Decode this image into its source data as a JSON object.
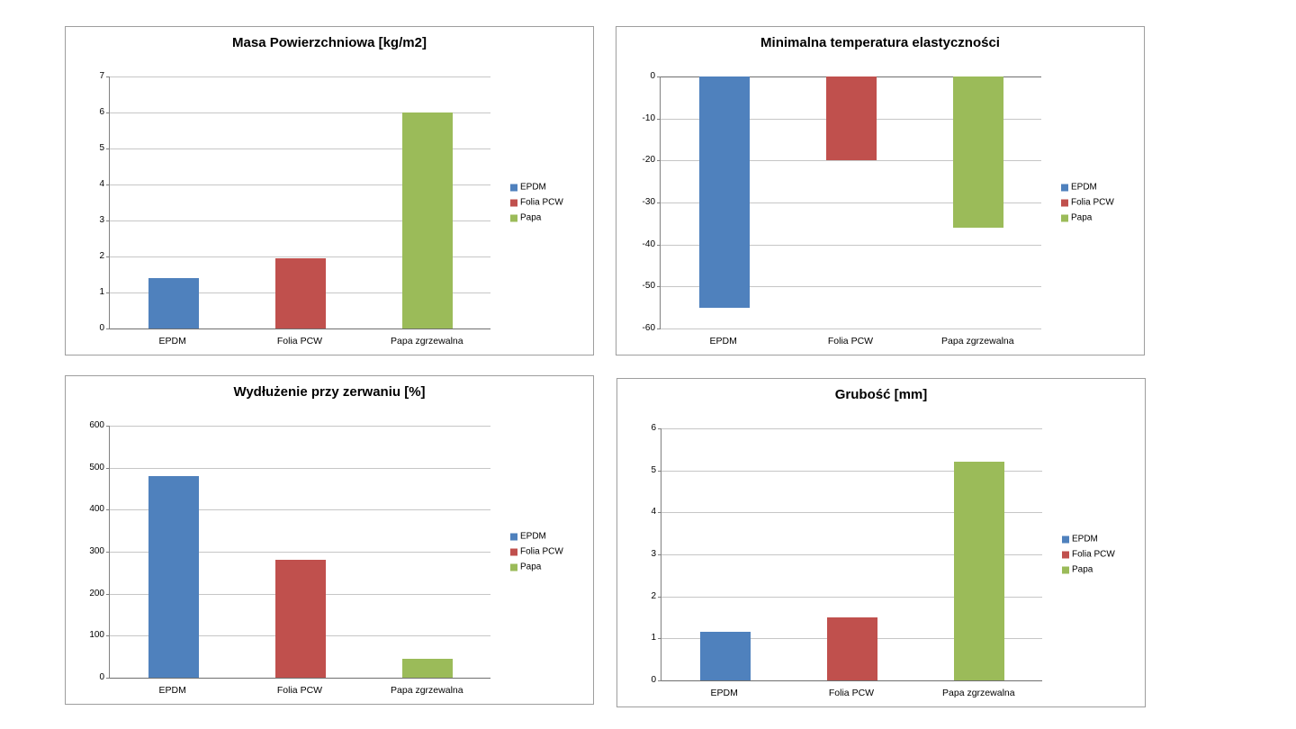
{
  "page": {
    "background": "#ffffff"
  },
  "series_colors": {
    "EPDM": "#4f81bd",
    "Folia PCW": "#c0504d",
    "Papa": "#9bbb59"
  },
  "chart_data": [
    {
      "type": "bar",
      "title": "Masa Powierzchniowa [kg/m2]",
      "categories": [
        "EPDM",
        "Folia PCW",
        "Papa zgrzewalna"
      ],
      "values": [
        1.4,
        1.95,
        6
      ],
      "colors": [
        "#4f81bd",
        "#c0504d",
        "#9bbb59"
      ],
      "legend": [
        "EPDM",
        "Folia PCW",
        "Papa"
      ],
      "legend_position": "right",
      "grid": true,
      "ylim": [
        0,
        7
      ],
      "yticks": [
        7,
        6,
        5,
        4,
        3,
        2,
        1,
        0
      ]
    },
    {
      "type": "bar",
      "title": "Minimalna temperatura elastyczności",
      "categories": [
        "EPDM",
        "Folia PCW",
        "Papa zgrzewalna"
      ],
      "values": [
        -55,
        -20,
        -36
      ],
      "colors": [
        "#4f81bd",
        "#c0504d",
        "#9bbb59"
      ],
      "legend": [
        "EPDM",
        "Folia PCW",
        "Papa"
      ],
      "legend_position": "right",
      "grid": true,
      "ylim": [
        -60,
        0
      ],
      "yticks": [
        0,
        -10,
        -20,
        -30,
        -40,
        -50,
        -60
      ]
    },
    {
      "type": "bar",
      "title": "Wydłużenie przy zerwaniu [%]",
      "categories": [
        "EPDM",
        "Folia PCW",
        "Papa zgrzewalna"
      ],
      "values": [
        480,
        280,
        45
      ],
      "colors": [
        "#4f81bd",
        "#c0504d",
        "#9bbb59"
      ],
      "legend": [
        "EPDM",
        "Folia PCW",
        "Papa"
      ],
      "legend_position": "right",
      "grid": true,
      "ylim": [
        0,
        600
      ],
      "yticks": [
        600,
        500,
        400,
        300,
        200,
        100,
        0
      ]
    },
    {
      "type": "bar",
      "title": "Grubość [mm]",
      "categories": [
        "EPDM",
        "Folia PCW",
        "Papa zgrzewalna"
      ],
      "values": [
        1.15,
        1.5,
        5.2
      ],
      "colors": [
        "#4f81bd",
        "#c0504d",
        "#9bbb59"
      ],
      "legend": [
        "EPDM",
        "Folia PCW",
        "Papa"
      ],
      "legend_position": "right",
      "grid": true,
      "ylim": [
        0,
        6
      ],
      "yticks": [
        6,
        5,
        4,
        3,
        2,
        1,
        0
      ]
    }
  ]
}
